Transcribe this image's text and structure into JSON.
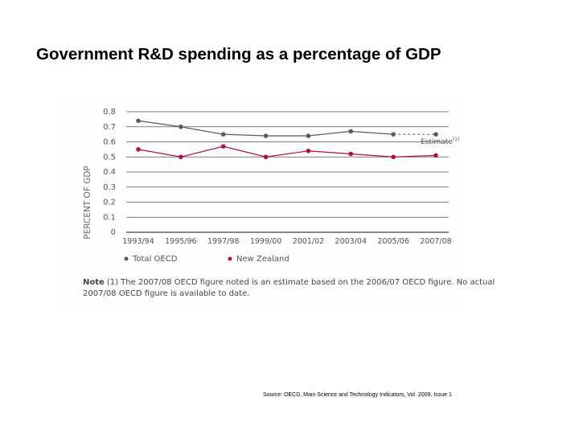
{
  "slide": {
    "title": "Government R&D spending as a percentage of GDP",
    "source": "Source: OECD, Main Science and Technology Indicators, Vol. 2009, Issue 1"
  },
  "chart_data": {
    "type": "line",
    "title": "",
    "xlabel": "",
    "ylabel": "PERCENT OF GDP",
    "ylim": [
      0,
      0.8
    ],
    "yticks": [
      "0",
      "0.1",
      "0.2",
      "0.3",
      "0.4",
      "0.5",
      "0.6",
      "0.7",
      "0.8"
    ],
    "grid": true,
    "categories": [
      "1993/94",
      "1995/96",
      "1997/98",
      "1999/00",
      "2001/02",
      "2003/04",
      "2005/06",
      "2007/08"
    ],
    "series": [
      {
        "name": "Total OECD",
        "color": "#5f5a55",
        "values": [
          0.74,
          0.7,
          0.65,
          0.64,
          0.64,
          0.67,
          0.65,
          0.65
        ],
        "estimate_last": true
      },
      {
        "name": "New Zealand",
        "color": "#b0103a",
        "values": [
          0.55,
          0.5,
          0.57,
          0.5,
          0.54,
          0.52,
          0.5,
          0.51
        ]
      }
    ],
    "annotation": "Estimate",
    "annotation_superscript": "(1)",
    "legend": "bottom",
    "note_label": "Note",
    "note_text_1": "(1) The 2007/08 OECD figure noted is an estimate based on the 2006/07 OECD figure. No actual",
    "note_text_2": "2007/08 OECD figure is available to date."
  }
}
